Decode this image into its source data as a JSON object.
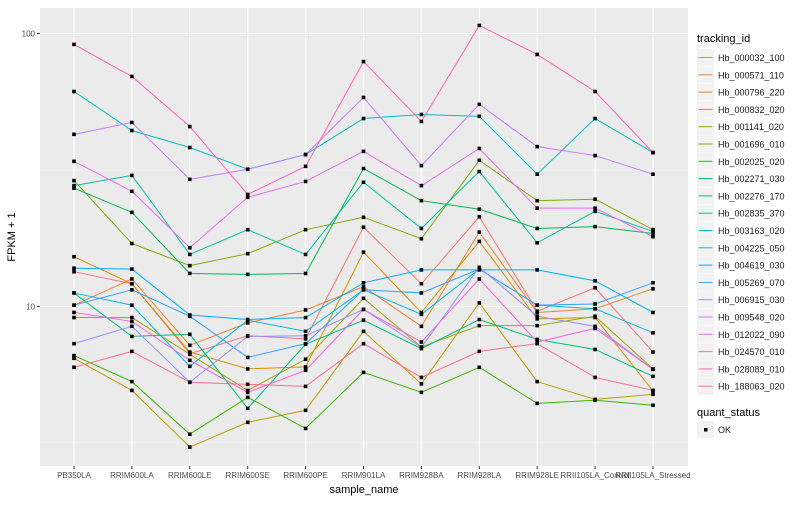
{
  "chart_data": {
    "type": "line",
    "xlabel": "sample_name",
    "ylabel": "FPKM + 1",
    "yscale": "log10",
    "ylim": [
      2.6,
      124
    ],
    "yticks": [
      10,
      100
    ],
    "ytick_labels": [
      "10",
      "100"
    ],
    "grid": true,
    "legend_placement": "right",
    "categories": [
      "PB350LA",
      "RRIM600LA",
      "RRIM600LE",
      "RRIM600SE",
      "RRIM600PE",
      "RRIM901LA",
      "RRIM928BA",
      "RRIM928LA",
      "RRIM928LE",
      "RRII105LA_Control",
      "RRII105LA_Stressed"
    ],
    "legend_title": "tracking_id",
    "series": [
      {
        "name": "Hb_000032_100",
        "color": "#F8766D",
        "values": [
          13.4,
          12.1,
          6.7,
          7.8,
          7.6,
          19.5,
          12.1,
          21.3,
          9.6,
          11.7,
          6.8
        ]
      },
      {
        "name": "Hb_000571_110",
        "color": "#EA8331",
        "values": [
          10.1,
          12.6,
          7.2,
          8.7,
          9.7,
          11.8,
          8.45,
          18.7,
          9.5,
          9.8,
          11.6
        ]
      },
      {
        "name": "Hb_000796_220",
        "color": "#D89000",
        "values": [
          15.2,
          12.1,
          6.8,
          5.9,
          6.0,
          15.8,
          9.5,
          17.3,
          9.0,
          9.1,
          4.9
        ]
      },
      {
        "name": "Hb_000832_020",
        "color": "#C09B00",
        "values": [
          6.45,
          4.92,
          3.05,
          3.76,
          4.16,
          8.1,
          5.2,
          10.3,
          5.3,
          4.56,
          4.76
        ]
      },
      {
        "name": "Hb_001141_020",
        "color": "#A3A500",
        "values": [
          9.1,
          9.1,
          6.67,
          4.92,
          6.4,
          10.7,
          7.1,
          8.5,
          8.5,
          9.2,
          5.9
        ]
      },
      {
        "name": "Hb_001696_010",
        "color": "#7CAE00",
        "values": [
          28.9,
          17.0,
          14.1,
          15.6,
          19.1,
          21.2,
          17.7,
          34.3,
          24.4,
          24.7,
          19.1
        ]
      },
      {
        "name": "Hb_002025_020",
        "color": "#39B600",
        "values": [
          6.6,
          5.3,
          3.4,
          4.64,
          3.57,
          5.73,
          4.84,
          5.98,
          4.41,
          4.53,
          4.34
        ]
      },
      {
        "name": "Hb_002271_030",
        "color": "#00BB4E",
        "values": [
          27.1,
          22.1,
          13.2,
          13.1,
          13.2,
          32.0,
          24.4,
          22.7,
          19.3,
          19.6,
          18.5
        ]
      },
      {
        "name": "Hb_002276_170",
        "color": "#00BF7D",
        "values": [
          11.2,
          7.76,
          7.9,
          4.23,
          7.26,
          8.9,
          7.0,
          8.95,
          7.57,
          6.95,
          5.54
        ]
      },
      {
        "name": "Hb_002835_370",
        "color": "#00C1A3",
        "values": [
          27.7,
          30.2,
          15.5,
          19.1,
          15.5,
          28.5,
          19.3,
          31.2,
          17.1,
          22.3,
          18.8
        ]
      },
      {
        "name": "Hb_003163_020",
        "color": "#00BFC4",
        "values": [
          61.3,
          44.1,
          38.2,
          31.8,
          36,
          48.8,
          50.5,
          49.7,
          30.5,
          48.8,
          36.6
        ]
      },
      {
        "name": "Hb_004225_050",
        "color": "#00BAE0",
        "values": [
          11.2,
          10.1,
          6.03,
          8.9,
          8.1,
          11.5,
          9.35,
          13.7,
          10.1,
          9.8,
          8.0
        ]
      },
      {
        "name": "Hb_004619_030",
        "color": "#00B0F6",
        "values": [
          13.8,
          13.7,
          9.3,
          8.95,
          9.1,
          12.2,
          13.6,
          13.6,
          13.6,
          12.4,
          9.5
        ]
      },
      {
        "name": "Hb_005269_070",
        "color": "#35A2FF",
        "values": [
          10.1,
          11.5,
          9.2,
          6.5,
          7.3,
          11.5,
          11.2,
          13.7,
          10.1,
          10.2,
          12.2
        ]
      },
      {
        "name": "Hb_006915_030",
        "color": "#9590FF",
        "values": [
          7.3,
          8.45,
          5.27,
          7.76,
          7.8,
          9.75,
          7.08,
          13.9,
          9.2,
          8.45,
          5.88
        ]
      },
      {
        "name": "Hb_009548_020",
        "color": "#C77CFF",
        "values": [
          42.7,
          47.2,
          29.2,
          31.8,
          36,
          58.3,
          32.8,
          55,
          38.5,
          35.7,
          30.5
        ]
      },
      {
        "name": "Hb_012022_090",
        "color": "#E76BF3",
        "values": [
          34,
          26.4,
          16.4,
          25.1,
          28.7,
          37,
          27.7,
          37.9,
          22.9,
          22.9,
          18
        ]
      },
      {
        "name": "Hb_024570_010",
        "color": "#FA62DB",
        "values": [
          9.5,
          8.8,
          6.34,
          4.84,
          5.83,
          9.75,
          7.4,
          12.6,
          7.4,
          8.3,
          5.88
        ]
      },
      {
        "name": "Hb_028089_010",
        "color": "#FF62BC",
        "values": [
          91.2,
          69.6,
          45.6,
          25.7,
          32.6,
          78.9,
          47.6,
          107,
          83.8,
          61.3,
          36.6
        ]
      },
      {
        "name": "Hb_188063_020",
        "color": "#FF6C91",
        "values": [
          5.98,
          6.84,
          5.27,
          5.18,
          5.09,
          7.3,
          5.49,
          6.84,
          7.3,
          5.49,
          4.92
        ]
      }
    ],
    "shape_legend": {
      "title": "quant_status",
      "items": [
        "OK"
      ]
    }
  }
}
